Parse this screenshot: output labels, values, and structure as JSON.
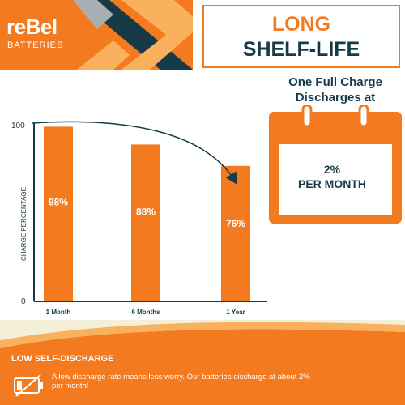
{
  "brand": {
    "name": "reBel",
    "sub": "BATTERIES"
  },
  "header": {
    "line1": "LONG",
    "line2": "SHELF-LIFE"
  },
  "chart_data": {
    "type": "bar",
    "categories": [
      "1 Month",
      "6 Months",
      "1 Year"
    ],
    "values": [
      98,
      88,
      76
    ],
    "data_labels": [
      "98%",
      "88%",
      "76%"
    ],
    "ylabel": "CHARGE PERCENTAGE",
    "ylim": [
      0,
      100
    ],
    "yticks": [
      "100",
      "0"
    ],
    "colors": {
      "bar": "#f47a20",
      "axis": "#173a48",
      "label": "#ffffff"
    }
  },
  "calendar": {
    "heading_line1": "One Full Charge",
    "heading_line2": "Discharges at",
    "value_line1": "2%",
    "value_line2": "PER MONTH",
    "icon": "calendar-icon"
  },
  "footer": {
    "heading": "LOW SELF-DISCHARGE",
    "body": "A low discharge rate means less worry. Our batteries discharge at about 2% per month!",
    "icon": "battery-low-icon"
  },
  "colors": {
    "orange": "#f47a20",
    "navy": "#173a48",
    "cream": "#f3efd9"
  }
}
